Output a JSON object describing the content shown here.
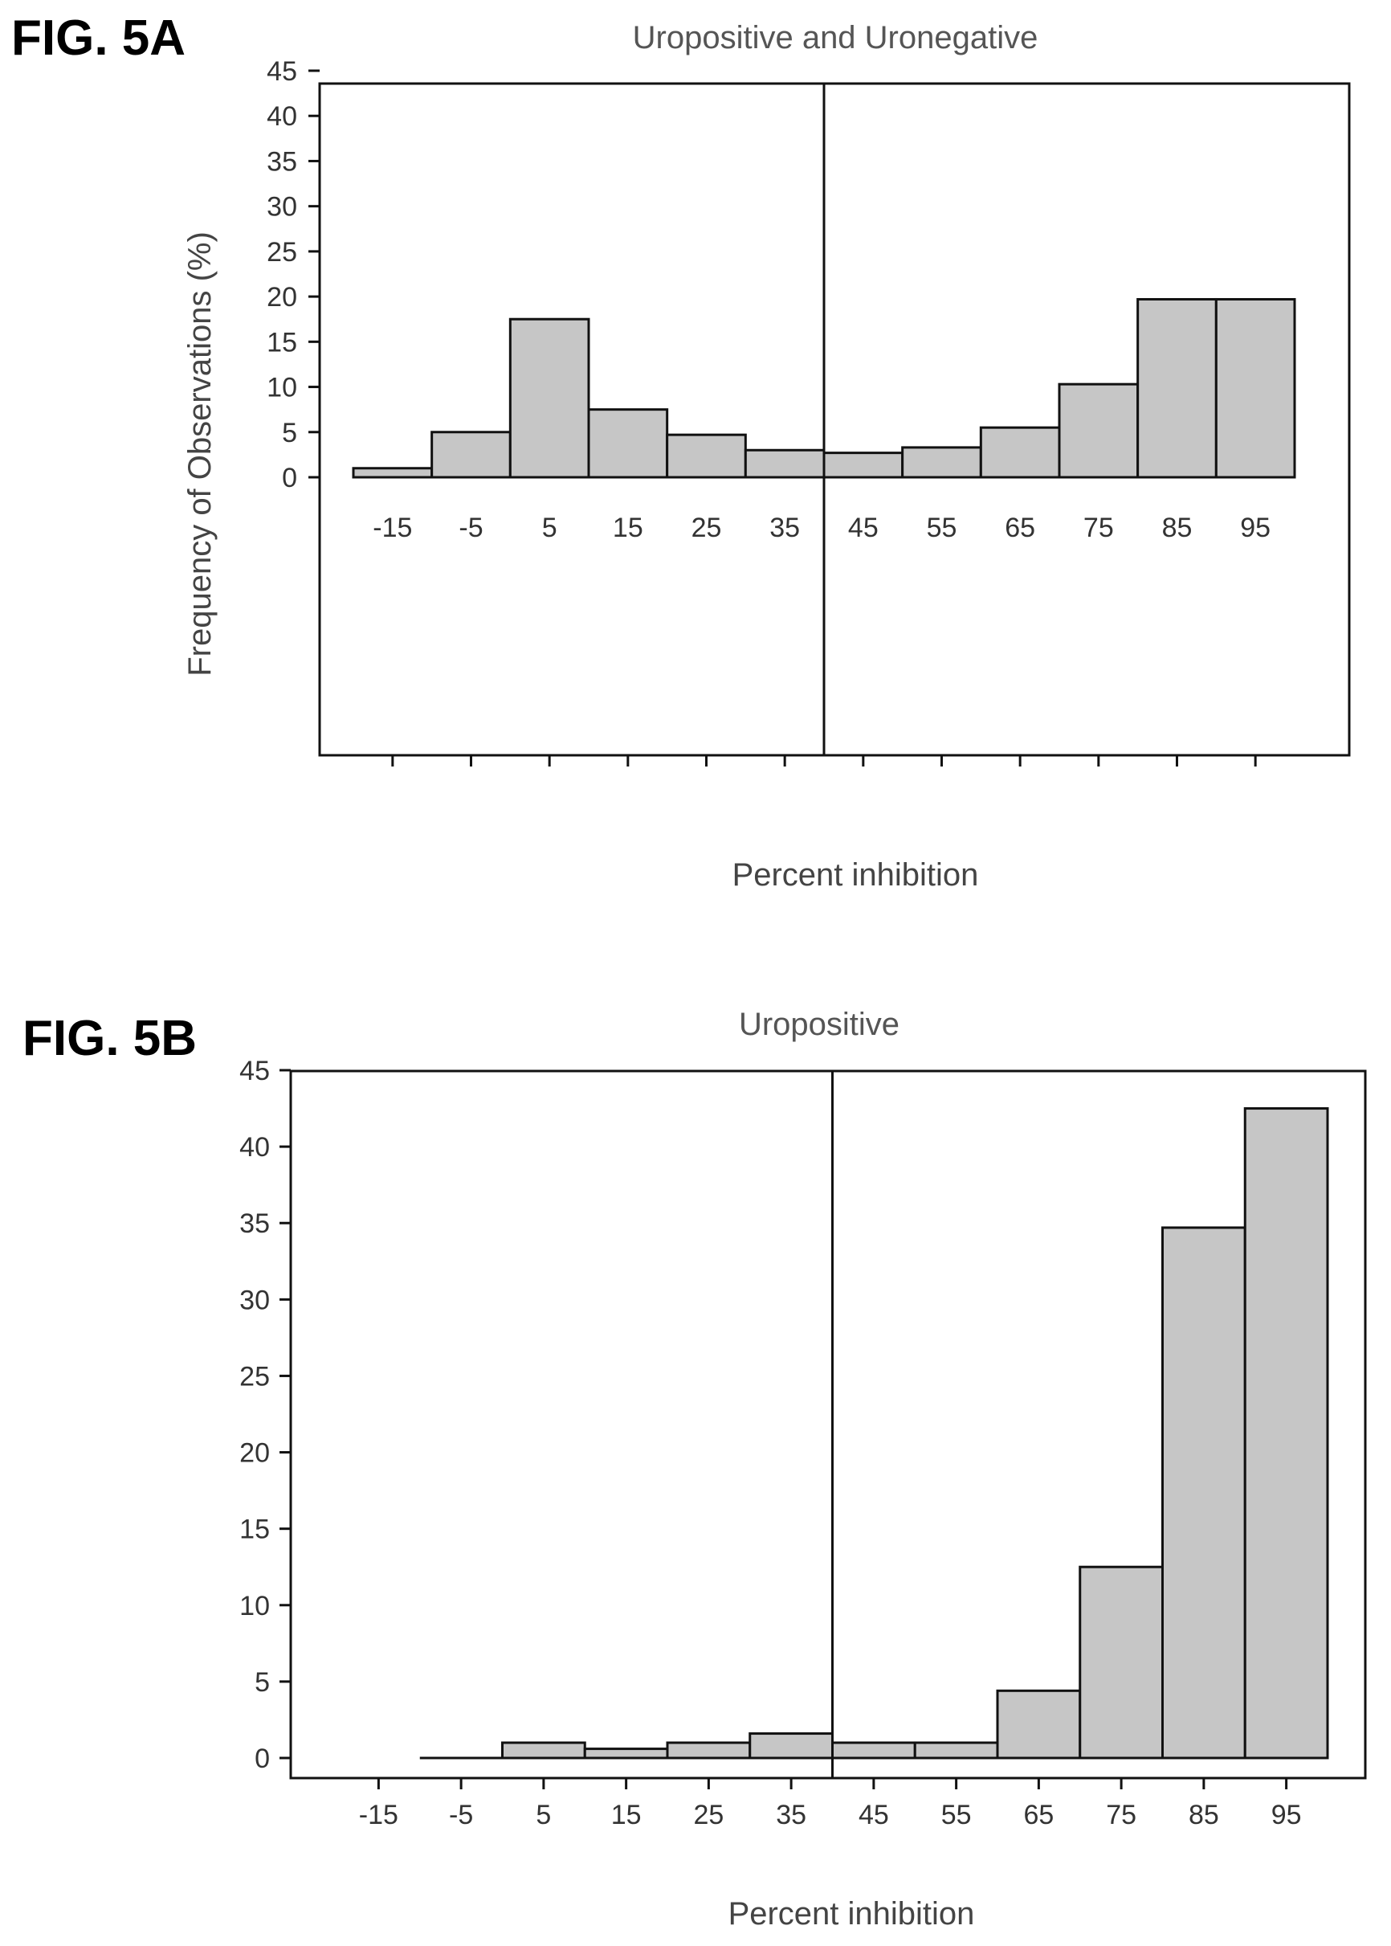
{
  "chart_data": [
    {
      "type": "bar",
      "figure_label": "FIG. 5A",
      "title": "Uropositive and Uronegative",
      "xlabel": "Percent inhibition",
      "ylabel": "Frequency of Observations (%)",
      "ylim": [
        0,
        45
      ],
      "yticks": [
        0,
        5,
        10,
        15,
        20,
        25,
        30,
        35,
        40,
        45
      ],
      "categories": [
        "-15",
        "-5",
        "5",
        "15",
        "25",
        "35",
        "45",
        "55",
        "65",
        "75",
        "85",
        "95"
      ],
      "values": [
        1,
        5,
        17.5,
        7.5,
        4.7,
        3,
        2.7,
        3.3,
        5.5,
        10.3,
        19.7,
        19.7
      ],
      "reference_line_x": 40,
      "grid": false,
      "legend": "none"
    },
    {
      "type": "bar",
      "figure_label": "FIG. 5B",
      "title": "Uropositive",
      "xlabel": "Percent inhibition",
      "ylabel": "",
      "ylim": [
        0,
        45
      ],
      "yticks": [
        0,
        5,
        10,
        15,
        20,
        25,
        30,
        35,
        40,
        45
      ],
      "categories": [
        "-15",
        "-5",
        "5",
        "15",
        "25",
        "35",
        "45",
        "55",
        "65",
        "75",
        "85",
        "95"
      ],
      "values": [
        0,
        0,
        1,
        0.6,
        1,
        1.6,
        1,
        1,
        4.4,
        12.5,
        34.7,
        42.5
      ],
      "reference_line_x": 40,
      "grid": false,
      "legend": "none"
    }
  ]
}
